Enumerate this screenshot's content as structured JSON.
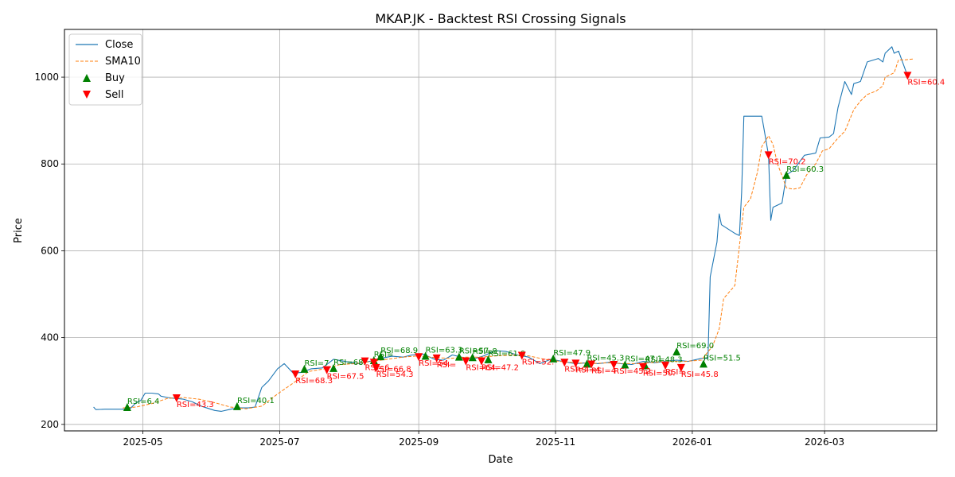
{
  "chart_data": {
    "type": "line",
    "title": "MKAP.JK - Backtest RSI Crossing Signals",
    "xlabel": "Date",
    "ylabel": "Price",
    "xlim": [
      "2025-03-27",
      "2026-04-20"
    ],
    "ylim": [
      185,
      1110
    ],
    "grid": true,
    "legend_position": "top-left",
    "x_ticks": [
      {
        "date": "2025-05-01",
        "label": "2025-05"
      },
      {
        "date": "2025-07-01",
        "label": "2025-07"
      },
      {
        "date": "2025-09-01",
        "label": "2025-09"
      },
      {
        "date": "2025-11-01",
        "label": "2025-11"
      },
      {
        "date": "2026-01-01",
        "label": "2026-01"
      },
      {
        "date": "2026-03-01",
        "label": "2026-03"
      }
    ],
    "y_ticks": [
      200,
      400,
      600,
      800,
      1000
    ],
    "colors": {
      "close": "#1f77b4",
      "sma": "#ff7f0e",
      "buy": "#008000",
      "sell": "#ff0000"
    },
    "series": [
      {
        "name": "Close",
        "style": "solid",
        "points": [
          [
            "2025-04-09",
            240
          ],
          [
            "2025-04-10",
            234
          ],
          [
            "2025-04-14",
            235
          ],
          [
            "2025-04-21",
            235
          ],
          [
            "2025-04-25",
            235
          ],
          [
            "2025-04-28",
            250
          ],
          [
            "2025-04-30",
            255
          ],
          [
            "2025-05-02",
            272
          ],
          [
            "2025-05-05",
            272
          ],
          [
            "2025-05-08",
            270
          ],
          [
            "2025-05-09",
            265
          ],
          [
            "2025-05-12",
            262
          ],
          [
            "2025-05-15",
            260
          ],
          [
            "2025-05-19",
            258
          ],
          [
            "2025-05-23",
            252
          ],
          [
            "2025-05-27",
            242
          ],
          [
            "2025-06-02",
            232
          ],
          [
            "2025-06-05",
            230
          ],
          [
            "2025-06-10",
            236
          ],
          [
            "2025-06-13",
            238
          ],
          [
            "2025-06-17",
            238
          ],
          [
            "2025-06-20",
            240
          ],
          [
            "2025-06-23",
            285
          ],
          [
            "2025-06-26",
            300
          ],
          [
            "2025-06-30",
            328
          ],
          [
            "2025-07-03",
            340
          ],
          [
            "2025-07-07",
            318
          ],
          [
            "2025-07-11",
            320
          ],
          [
            "2025-07-15",
            328
          ],
          [
            "2025-07-20",
            330
          ],
          [
            "2025-07-25",
            350
          ],
          [
            "2025-07-30",
            345
          ],
          [
            "2025-08-05",
            340
          ],
          [
            "2025-08-10",
            345
          ],
          [
            "2025-08-15",
            352
          ],
          [
            "2025-08-20",
            357
          ],
          [
            "2025-08-25",
            355
          ],
          [
            "2025-08-29",
            360
          ],
          [
            "2025-09-03",
            362
          ],
          [
            "2025-09-08",
            350
          ],
          [
            "2025-09-12",
            348
          ],
          [
            "2025-09-16",
            360
          ],
          [
            "2025-09-20",
            355
          ],
          [
            "2025-09-25",
            350
          ],
          [
            "2025-09-30",
            358
          ],
          [
            "2025-10-05",
            370
          ],
          [
            "2025-10-10",
            368
          ],
          [
            "2025-10-15",
            360
          ],
          [
            "2025-10-20",
            355
          ],
          [
            "2025-10-25",
            340
          ],
          [
            "2025-10-30",
            350
          ],
          [
            "2025-11-04",
            345
          ],
          [
            "2025-11-10",
            340
          ],
          [
            "2025-11-15",
            342
          ],
          [
            "2025-11-20",
            340
          ],
          [
            "2025-11-25",
            343
          ],
          [
            "2025-11-30",
            340
          ],
          [
            "2025-12-05",
            338
          ],
          [
            "2025-12-10",
            345
          ],
          [
            "2025-12-15",
            342
          ],
          [
            "2025-12-20",
            345
          ],
          [
            "2025-12-25",
            348
          ],
          [
            "2025-12-30",
            345
          ],
          [
            "2026-01-05",
            352
          ],
          [
            "2026-01-08",
            352
          ],
          [
            "2026-01-09",
            540
          ],
          [
            "2026-01-12",
            620
          ],
          [
            "2026-01-13",
            685
          ],
          [
            "2026-01-14",
            660
          ],
          [
            "2026-01-20",
            640
          ],
          [
            "2026-01-22",
            635
          ],
          [
            "2026-01-23",
            735
          ],
          [
            "2026-01-24",
            910
          ],
          [
            "2026-02-01",
            910
          ],
          [
            "2026-02-02",
            880
          ],
          [
            "2026-02-04",
            820
          ],
          [
            "2026-02-05",
            670
          ],
          [
            "2026-02-06",
            700
          ],
          [
            "2026-02-10",
            710
          ],
          [
            "2026-02-12",
            775
          ],
          [
            "2026-02-15",
            785
          ],
          [
            "2026-02-20",
            820
          ],
          [
            "2026-02-25",
            825
          ],
          [
            "2026-02-27",
            860
          ],
          [
            "2026-03-03",
            862
          ],
          [
            "2026-03-05",
            870
          ],
          [
            "2026-03-07",
            930
          ],
          [
            "2026-03-10",
            990
          ],
          [
            "2026-03-13",
            960
          ],
          [
            "2026-03-14",
            985
          ],
          [
            "2026-03-17",
            990
          ],
          [
            "2026-03-20",
            1035
          ],
          [
            "2026-03-25",
            1043
          ],
          [
            "2026-03-27",
            1035
          ],
          [
            "2026-03-28",
            1055
          ],
          [
            "2026-03-31",
            1070
          ],
          [
            "2026-04-01",
            1055
          ],
          [
            "2026-04-03",
            1060
          ],
          [
            "2026-04-07",
            1003
          ]
        ]
      },
      {
        "name": "SMA10",
        "style": "dashed",
        "points": [
          [
            "2025-04-22",
            238
          ],
          [
            "2025-04-28",
            240
          ],
          [
            "2025-05-05",
            248
          ],
          [
            "2025-05-12",
            260
          ],
          [
            "2025-05-19",
            262
          ],
          [
            "2025-05-26",
            258
          ],
          [
            "2025-06-02",
            250
          ],
          [
            "2025-06-09",
            240
          ],
          [
            "2025-06-16",
            236
          ],
          [
            "2025-06-23",
            242
          ],
          [
            "2025-06-30",
            270
          ],
          [
            "2025-07-07",
            295
          ],
          [
            "2025-07-14",
            322
          ],
          [
            "2025-07-21",
            328
          ],
          [
            "2025-07-28",
            338
          ],
          [
            "2025-08-04",
            340
          ],
          [
            "2025-08-11",
            345
          ],
          [
            "2025-08-18",
            350
          ],
          [
            "2025-08-25",
            355
          ],
          [
            "2025-09-01",
            358
          ],
          [
            "2025-09-08",
            354
          ],
          [
            "2025-09-15",
            352
          ],
          [
            "2025-09-22",
            355
          ],
          [
            "2025-09-29",
            355
          ],
          [
            "2025-10-06",
            358
          ],
          [
            "2025-10-13",
            360
          ],
          [
            "2025-10-20",
            358
          ],
          [
            "2025-10-27",
            350
          ],
          [
            "2025-11-03",
            345
          ],
          [
            "2025-11-10",
            342
          ],
          [
            "2025-11-17",
            340
          ],
          [
            "2025-11-24",
            342
          ],
          [
            "2025-12-01",
            340
          ],
          [
            "2025-12-08",
            340
          ],
          [
            "2025-12-15",
            343
          ],
          [
            "2025-12-22",
            345
          ],
          [
            "2025-12-29",
            345
          ],
          [
            "2026-01-05",
            348
          ],
          [
            "2026-01-10",
            380
          ],
          [
            "2026-01-13",
            420
          ],
          [
            "2026-01-15",
            490
          ],
          [
            "2026-01-20",
            520
          ],
          [
            "2026-01-24",
            700
          ],
          [
            "2026-01-27",
            720
          ],
          [
            "2026-01-30",
            780
          ],
          [
            "2026-02-01",
            840
          ],
          [
            "2026-02-04",
            865
          ],
          [
            "2026-02-06",
            845
          ],
          [
            "2026-02-08",
            800
          ],
          [
            "2026-02-12",
            745
          ],
          [
            "2026-02-15",
            742
          ],
          [
            "2026-02-18",
            745
          ],
          [
            "2026-02-21",
            775
          ],
          [
            "2026-02-25",
            800
          ],
          [
            "2026-02-28",
            830
          ],
          [
            "2026-03-03",
            835
          ],
          [
            "2026-03-07",
            860
          ],
          [
            "2026-03-10",
            875
          ],
          [
            "2026-03-14",
            925
          ],
          [
            "2026-03-17",
            945
          ],
          [
            "2026-03-20",
            960
          ],
          [
            "2026-03-24",
            968
          ],
          [
            "2026-03-27",
            980
          ],
          [
            "2026-03-28",
            1000
          ],
          [
            "2026-04-01",
            1010
          ],
          [
            "2026-04-03",
            1040
          ],
          [
            "2026-04-06",
            1040
          ],
          [
            "2026-04-10",
            1042
          ]
        ]
      }
    ],
    "buy_signals": [
      {
        "date": "2025-04-24",
        "price": 240,
        "label": "RSI=6.4"
      },
      {
        "date": "2025-06-12",
        "price": 242,
        "label": "RSI=40.1"
      },
      {
        "date": "2025-07-12",
        "price": 328,
        "label": "RSI=7"
      },
      {
        "date": "2025-07-25",
        "price": 330,
        "label": "RSI=68."
      },
      {
        "date": "2025-08-12",
        "price": 348,
        "label": "RSI="
      },
      {
        "date": "2025-08-15",
        "price": 357,
        "label": "RSI=68.9"
      },
      {
        "date": "2025-09-04",
        "price": 358,
        "label": "RSI=63.3"
      },
      {
        "date": "2025-09-19",
        "price": 356,
        "label": "RSI=57."
      },
      {
        "date": "2025-09-25",
        "price": 355,
        "label": "RSI=8"
      },
      {
        "date": "2025-10-02",
        "price": 350,
        "label": "RSI=61.9"
      },
      {
        "date": "2025-10-31",
        "price": 352,
        "label": "RSI=47.9"
      },
      {
        "date": "2025-11-15",
        "price": 340,
        "label": "RSI=45.3"
      },
      {
        "date": "2025-12-02",
        "price": 338,
        "label": "RSI=47.1"
      },
      {
        "date": "2025-12-11",
        "price": 336,
        "label": "RSI=48.3"
      },
      {
        "date": "2025-12-25",
        "price": 368,
        "label": "RSI=69.0"
      },
      {
        "date": "2026-01-06",
        "price": 340,
        "label": "RSI=51.5"
      },
      {
        "date": "2026-02-12",
        "price": 775,
        "label": "RSI=60.3"
      }
    ],
    "sell_signals": [
      {
        "date": "2025-05-16",
        "price": 260,
        "label": "RSI=43.3"
      },
      {
        "date": "2025-07-08",
        "price": 315,
        "label": "RSI=68.3"
      },
      {
        "date": "2025-07-22",
        "price": 325,
        "label": "RSI=67.5"
      },
      {
        "date": "2025-08-08",
        "price": 345,
        "label": "RSI=6"
      },
      {
        "date": "2025-08-12",
        "price": 342,
        "label": "RSI=66.8"
      },
      {
        "date": "2025-08-13",
        "price": 330,
        "label": "RSI=54.3"
      },
      {
        "date": "2025-09-01",
        "price": 355,
        "label": "RSI=54."
      },
      {
        "date": "2025-09-09",
        "price": 352,
        "label": "RSI="
      },
      {
        "date": "2025-09-22",
        "price": 345,
        "label": "RSI=64."
      },
      {
        "date": "2025-09-29",
        "price": 345,
        "label": "RSI=47.2"
      },
      {
        "date": "2025-10-17",
        "price": 358,
        "label": "RSI=52."
      },
      {
        "date": "2025-11-05",
        "price": 342,
        "label": "RSI=4"
      },
      {
        "date": "2025-11-10",
        "price": 340,
        "label": "RSI=4"
      },
      {
        "date": "2025-11-17",
        "price": 338,
        "label": "RSI=4"
      },
      {
        "date": "2025-11-27",
        "price": 337,
        "label": "RSI=45.2"
      },
      {
        "date": "2025-12-10",
        "price": 332,
        "label": "RSI=50."
      },
      {
        "date": "2025-12-20",
        "price": 335,
        "label": "RSI="
      },
      {
        "date": "2025-12-27",
        "price": 330,
        "label": "RSI=45.8"
      },
      {
        "date": "2026-02-04",
        "price": 820,
        "label": "RSI=70.2"
      },
      {
        "date": "2026-04-07",
        "price": 1003,
        "label": "RSI=60.4"
      }
    ],
    "legend": [
      {
        "key": "close",
        "label": "Close"
      },
      {
        "key": "sma",
        "label": "SMA10"
      },
      {
        "key": "buy",
        "label": "Buy"
      },
      {
        "key": "sell",
        "label": "Sell"
      }
    ]
  }
}
